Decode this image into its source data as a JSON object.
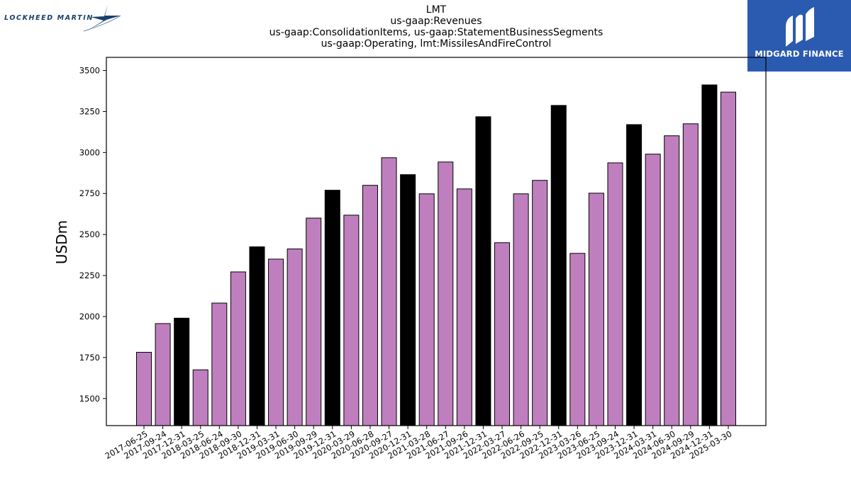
{
  "logos": {
    "left_text": "LOCKHEED MARTIN",
    "right_text": "MIDGARD FINANCE",
    "right_bg": "#2b5bb0"
  },
  "chart_data": {
    "type": "bar",
    "title_lines": [
      "LMT",
      "us-gaap:Revenues",
      "us-gaap:ConsolidationItems, us-gaap:StatementBusinessSegments",
      "us-gaap:Operating, lmt:MissilesAndFireControl"
    ],
    "ylabel": "USDm",
    "xlabel": "",
    "ylim": [
      1335,
      3580
    ],
    "yticks": [
      1500,
      1750,
      2000,
      2250,
      2500,
      2750,
      3000,
      3250,
      3500
    ],
    "grid": false,
    "colors": {
      "quarter": "#bf7fbf",
      "year_end": "#000000"
    },
    "categories": [
      "2017-06-25",
      "2017-09-24",
      "2017-12-31",
      "2018-03-25",
      "2018-06-24",
      "2018-09-30",
      "2018-12-31",
      "2019-03-31",
      "2019-06-30",
      "2019-09-29",
      "2019-12-31",
      "2020-03-29",
      "2020-06-28",
      "2020-09-27",
      "2020-12-31",
      "2021-03-28",
      "2021-06-27",
      "2021-09-26",
      "2021-12-31",
      "2022-03-27",
      "2022-06-26",
      "2022-09-25",
      "2022-12-31",
      "2023-03-26",
      "2023-06-25",
      "2023-09-24",
      "2023-12-31",
      "2024-03-31",
      "2024-06-30",
      "2024-09-29",
      "2024-12-31",
      "2025-03-30"
    ],
    "values": [
      1782,
      1957,
      1990,
      1675,
      2082,
      2272,
      2425,
      2350,
      2412,
      2600,
      2770,
      2618,
      2800,
      2968,
      2865,
      2748,
      2942,
      2778,
      3218,
      2450,
      2748,
      2830,
      3287,
      2385,
      2752,
      2937,
      3170,
      2990,
      3102,
      3175,
      3412,
      3368
    ],
    "year_end": [
      false,
      false,
      true,
      false,
      false,
      false,
      true,
      false,
      false,
      false,
      true,
      false,
      false,
      false,
      true,
      false,
      false,
      false,
      true,
      false,
      false,
      false,
      true,
      false,
      false,
      false,
      true,
      false,
      false,
      false,
      true,
      false
    ]
  }
}
